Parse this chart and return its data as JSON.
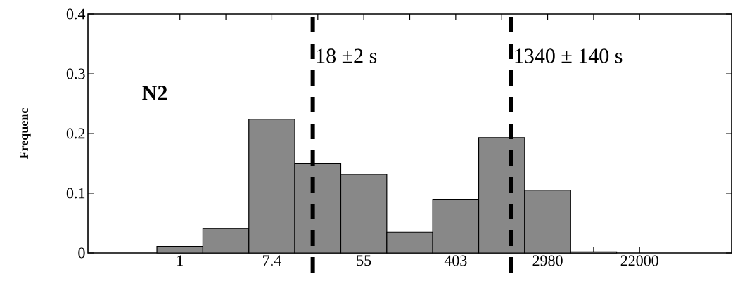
{
  "chart_data": {
    "type": "histogram",
    "ylabel": "Frequenc",
    "log": "x",
    "color": "#888888",
    "bins": [
      0.6065,
      1.649,
      4.482,
      12.18,
      33.12,
      90.02,
      244.7,
      665.1,
      1808,
      4915,
      13360
    ],
    "values": [
      0.011,
      0.041,
      0.224,
      0.15,
      0.132,
      0.035,
      0.09,
      0.193,
      0.105,
      0.002
    ],
    "xlim": [
      0.1353,
      162755
    ],
    "ylim": [
      0,
      0.4
    ],
    "xticks": [
      1,
      {
        "value": 2.718,
        "label": null
      },
      {
        "value": 7.389,
        "label": "7.4"
      },
      {
        "value": 20.09,
        "label": null
      },
      {
        "value": 54.6,
        "label": "55"
      },
      {
        "value": 148.4,
        "label": null
      },
      {
        "value": 403.4,
        "label": "403"
      },
      {
        "value": 1097,
        "label": null
      },
      2980,
      {
        "value": 8103,
        "label": null
      },
      22000
    ],
    "yticks": [
      0,
      0.1,
      0.2,
      0.3,
      0.4
    ],
    "annotations": [
      "N2"
    ],
    "ref_lines": [
      {
        "axis": "x",
        "value": 18,
        "label": "18 ±2 s",
        "color": "#000000",
        "line_style": "dashed"
      },
      {
        "axis": "x",
        "value": 1340,
        "label": "1340 ± 140 s",
        "color": "#000000",
        "line_style": "dashed"
      }
    ]
  }
}
